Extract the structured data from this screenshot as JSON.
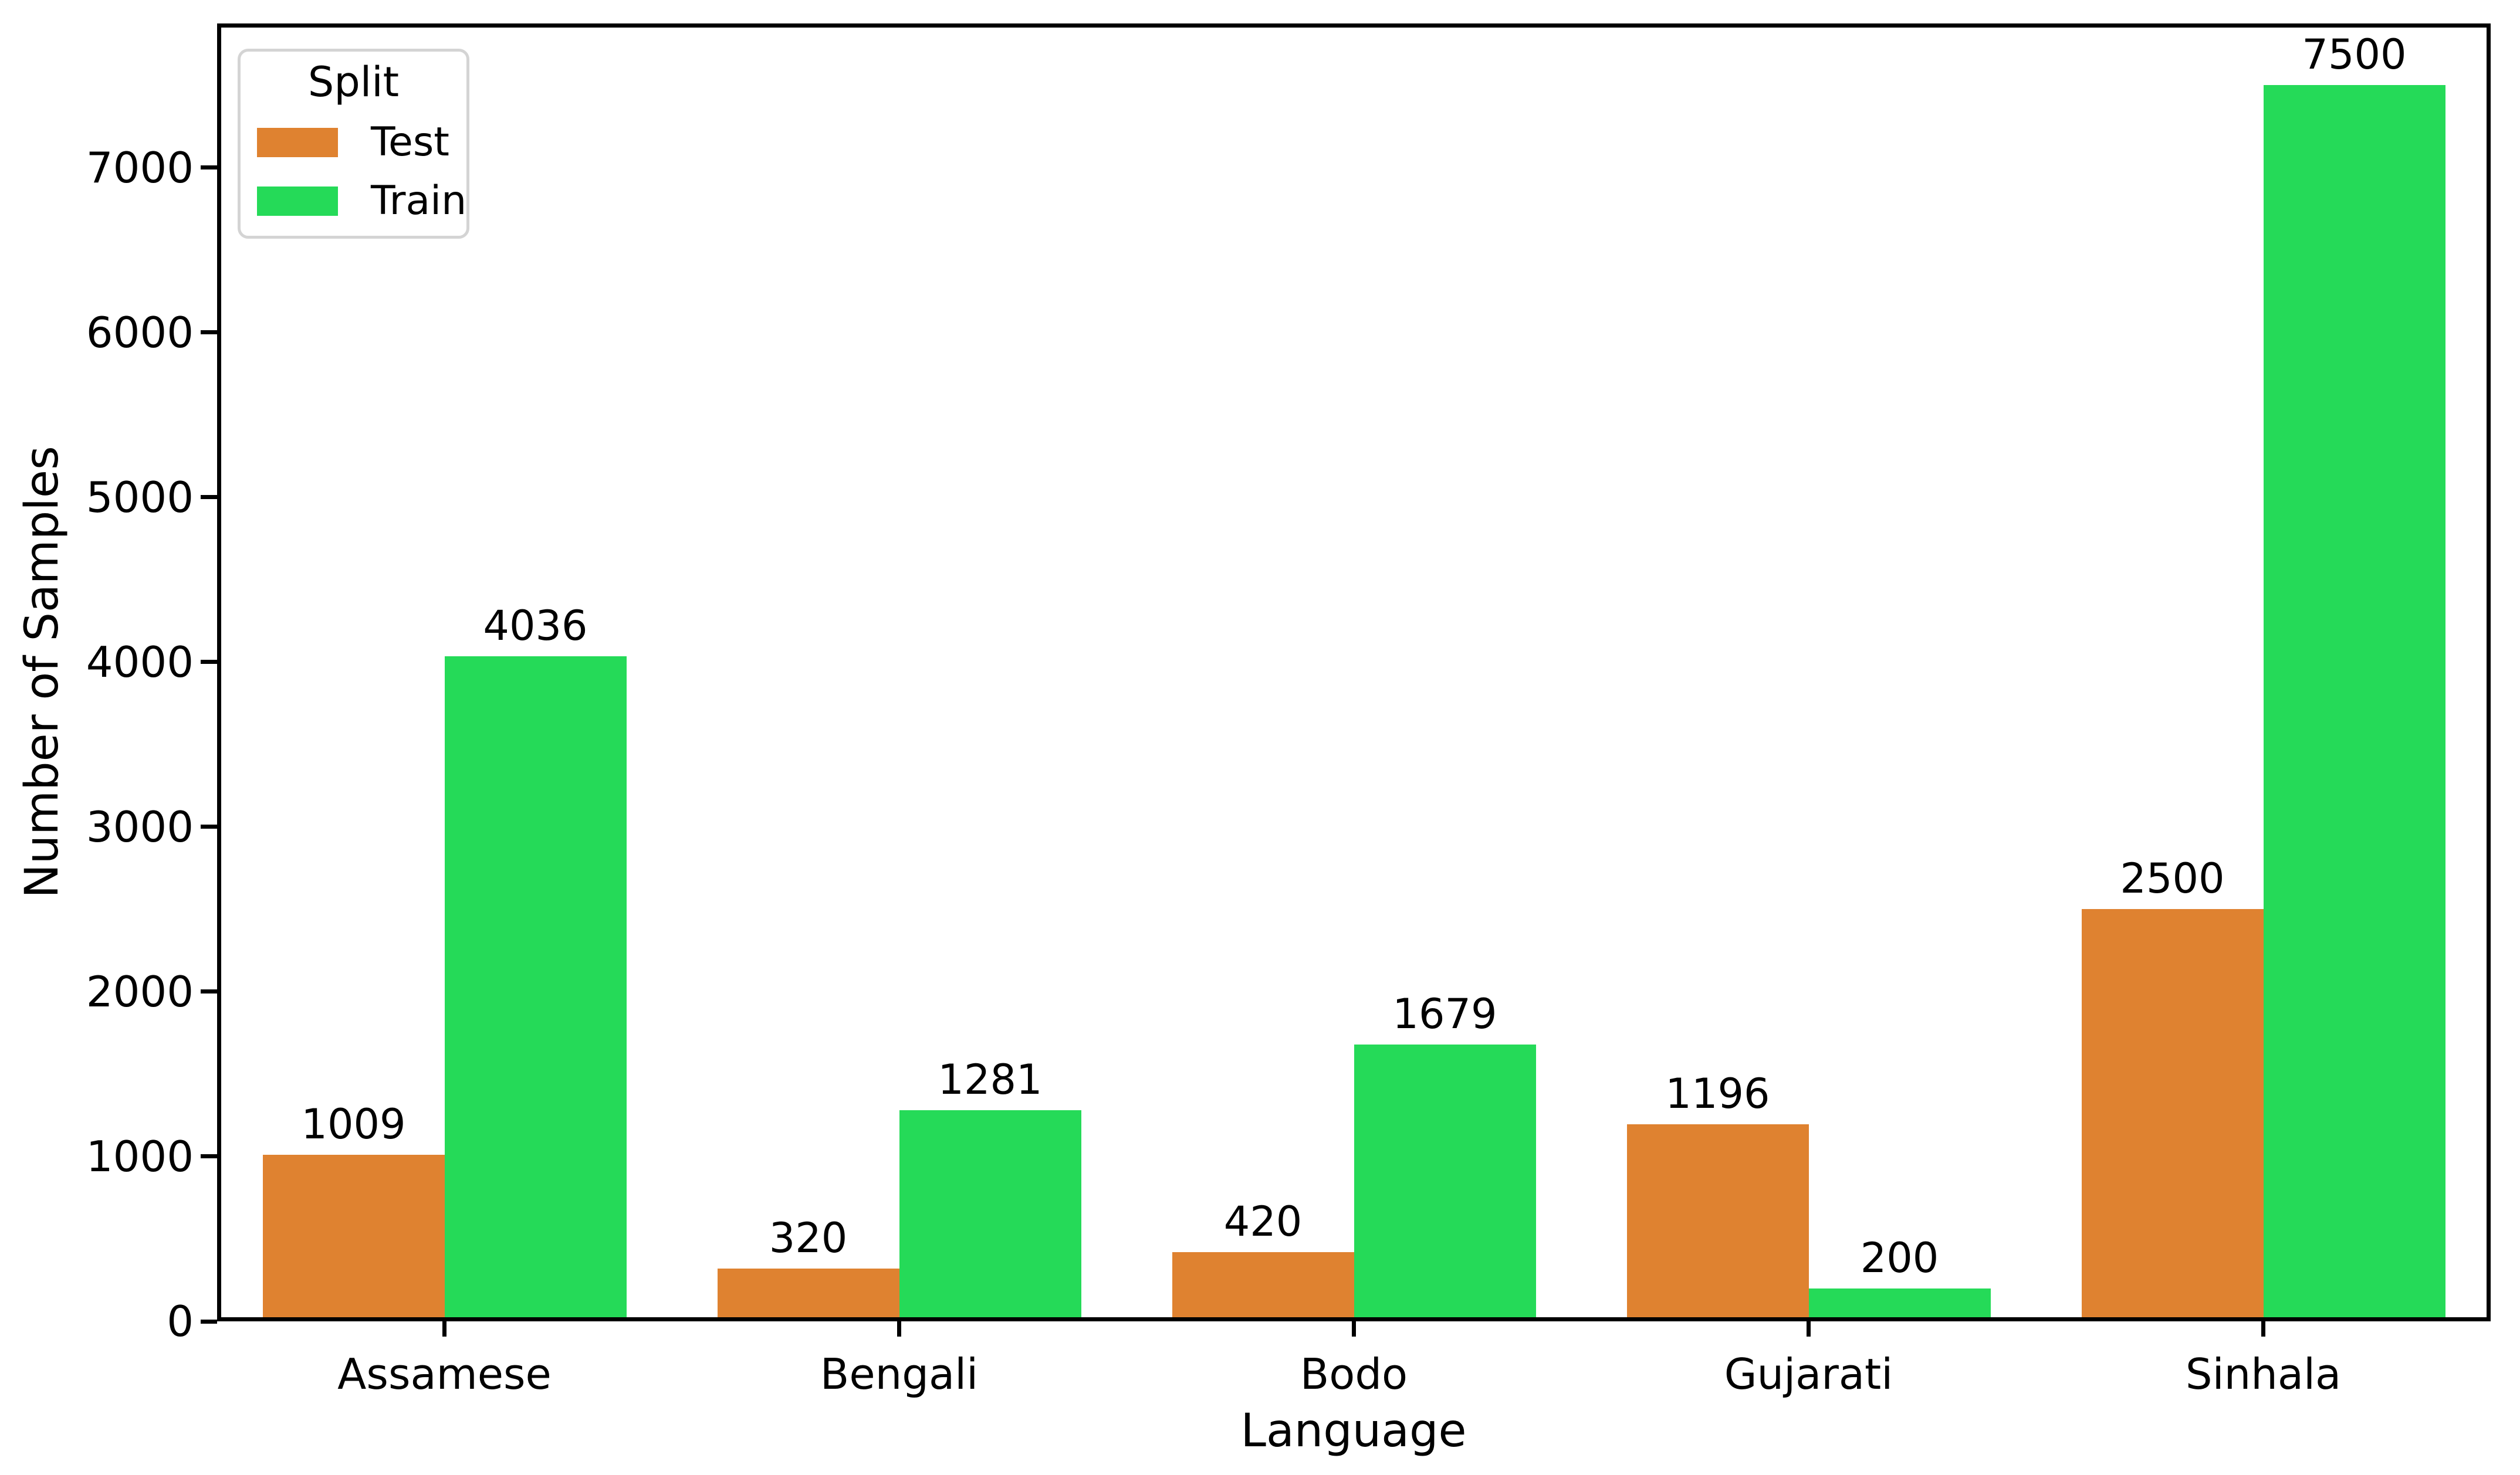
{
  "figure": {
    "background": "#ffffff",
    "text_color": "#000000"
  },
  "axes": {
    "x_label": "Language",
    "y_label": "Number of Samples",
    "y_ticks": [
      0,
      1000,
      2000,
      3000,
      4000,
      5000,
      6000,
      7000
    ]
  },
  "legend": {
    "title": "Split",
    "items": [
      {
        "label": "Test",
        "color": "#df8230"
      },
      {
        "label": "Train",
        "color": "#25da58"
      }
    ]
  },
  "chart_data": {
    "type": "bar",
    "title": "",
    "xlabel": "Language",
    "ylabel": "Number of Samples",
    "categories": [
      "Assamese",
      "Bengali",
      "Bodo",
      "Gujarati",
      "Sinhala"
    ],
    "series": [
      {
        "name": "Test",
        "color": "#df8230",
        "values": [
          1009,
          320,
          420,
          1196,
          2500
        ]
      },
      {
        "name": "Train",
        "color": "#25da58",
        "values": [
          4036,
          1281,
          1679,
          200,
          7500
        ]
      }
    ],
    "bar_value_labels": [
      [
        "1009",
        "320",
        "420",
        "1196",
        "2500"
      ],
      [
        "4036",
        "1281",
        "1679",
        "200",
        "7500"
      ]
    ],
    "ylim": [
      0,
      7875
    ],
    "y_tick_labels": [
      "0",
      "1000",
      "2000",
      "3000",
      "4000",
      "5000",
      "6000",
      "7000"
    ],
    "grid": false,
    "legend_position": "upper left"
  }
}
